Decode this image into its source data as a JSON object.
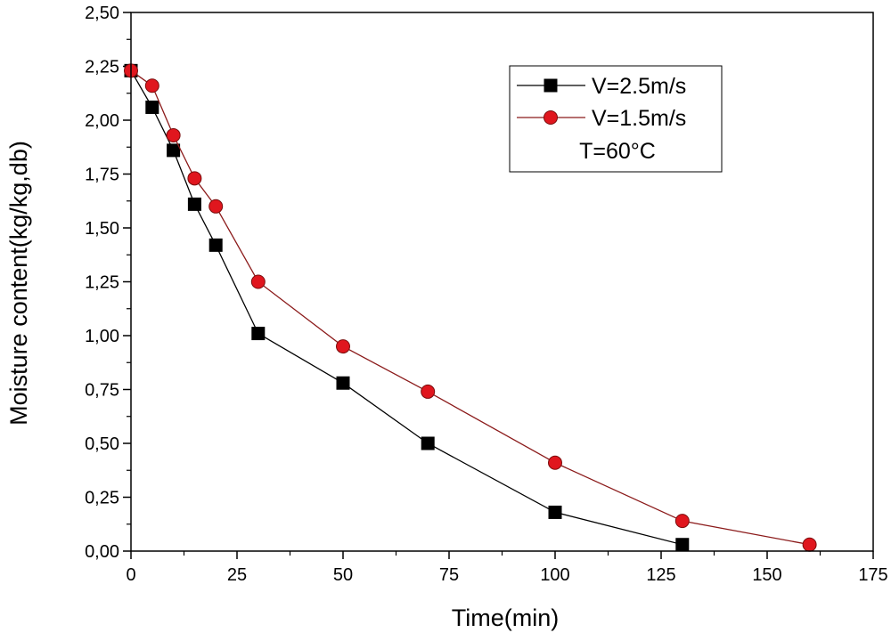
{
  "chart_data": {
    "type": "line",
    "xlabel": "Time(min)",
    "ylabel": "Moisture content(kg/kg,db)",
    "xlim": [
      0,
      175
    ],
    "ylim": [
      0,
      2.5
    ],
    "xticks": [
      0,
      25,
      50,
      75,
      100,
      125,
      150,
      175
    ],
    "xtick_labels": [
      "0",
      "25",
      "50",
      "75",
      "100",
      "125",
      "150",
      "175"
    ],
    "yticks": [
      0,
      0.25,
      0.5,
      0.75,
      1.0,
      1.25,
      1.5,
      1.75,
      2.0,
      2.25,
      2.5
    ],
    "ytick_labels": [
      "0,00",
      "0,25",
      "0,50",
      "0,75",
      "1,00",
      "1,25",
      "1,50",
      "1,75",
      "2,00",
      "2,25",
      "2,50"
    ],
    "grid": false,
    "legend_position": "top-right",
    "legend_note": "T=60°C",
    "series": [
      {
        "name": "V=2.5m/s",
        "marker": "square",
        "line_color": "#000000",
        "marker_color": "#000000",
        "x": [
          0,
          5,
          10,
          15,
          20,
          30,
          50,
          70,
          100,
          130
        ],
        "y": [
          2.23,
          2.06,
          1.86,
          1.61,
          1.42,
          1.01,
          0.78,
          0.5,
          0.18,
          0.03
        ]
      },
      {
        "name": "V=1.5m/s",
        "marker": "circle",
        "line_color": "#8b1a1a",
        "marker_color": "#e0161e",
        "x": [
          0,
          5,
          10,
          15,
          20,
          30,
          50,
          70,
          100,
          130,
          160
        ],
        "y": [
          2.23,
          2.16,
          1.93,
          1.73,
          1.6,
          1.25,
          0.95,
          0.74,
          0.41,
          0.14,
          0.03
        ]
      }
    ]
  }
}
